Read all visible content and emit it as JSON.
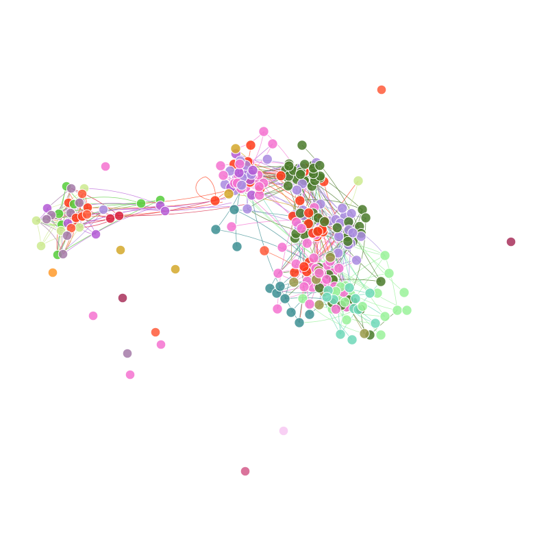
{
  "diagram": {
    "type": "force-directed-network",
    "background": "#ffffff",
    "labels_shown": false,
    "palette": {
      "pink": "#f472d0",
      "red": "#ff3b1a",
      "dark-green": "#4a7a2a",
      "lavender": "#a98be0",
      "violet": "#b45ad6",
      "teal": "#3d8f93",
      "bright-green": "#55cc3a",
      "light-green": "#9af29a",
      "mint": "#6fd8b8",
      "yellow-green": "#cdea8f",
      "olive": "#9a9a4a",
      "gold": "#d4a82a",
      "orange": "#ff9a2a",
      "coral": "#ff5a3a",
      "crimson": "#d81e3c",
      "maroon": "#a8305a",
      "mauve": "#a57aa8",
      "light-pink": "#f7c8f2",
      "rose": "#d45a8a"
    },
    "clusters": [
      {
        "name": "main-cluster",
        "composition": [
          "pink",
          "red",
          "dark-green",
          "lavender",
          "violet",
          "teal",
          "mint",
          "light-green",
          "olive",
          "gold"
        ]
      },
      {
        "name": "left-cluster",
        "composition": [
          "red",
          "bright-green",
          "violet",
          "yellow-green",
          "mauve",
          "crimson",
          "orange"
        ]
      }
    ],
    "isolated_nodes": [
      {
        "name": "isolated-coral-top",
        "color": "coral"
      },
      {
        "name": "isolated-maroon-right",
        "color": "maroon"
      },
      {
        "name": "isolated-pink-left",
        "color": "pink"
      },
      {
        "name": "isolated-gold-1",
        "color": "gold"
      },
      {
        "name": "isolated-gold-2",
        "color": "gold"
      },
      {
        "name": "isolated-orange",
        "color": "orange"
      },
      {
        "name": "isolated-maroon-left",
        "color": "maroon"
      },
      {
        "name": "isolated-pink-low",
        "color": "pink"
      },
      {
        "name": "isolated-coral-low",
        "color": "coral"
      },
      {
        "name": "isolated-pink-low-2",
        "color": "pink"
      },
      {
        "name": "isolated-mauve",
        "color": "mauve"
      },
      {
        "name": "isolated-pink-bottom",
        "color": "pink"
      },
      {
        "name": "isolated-light-pink",
        "color": "light-pink"
      },
      {
        "name": "isolated-rose-bottom",
        "color": "rose"
      }
    ]
  }
}
